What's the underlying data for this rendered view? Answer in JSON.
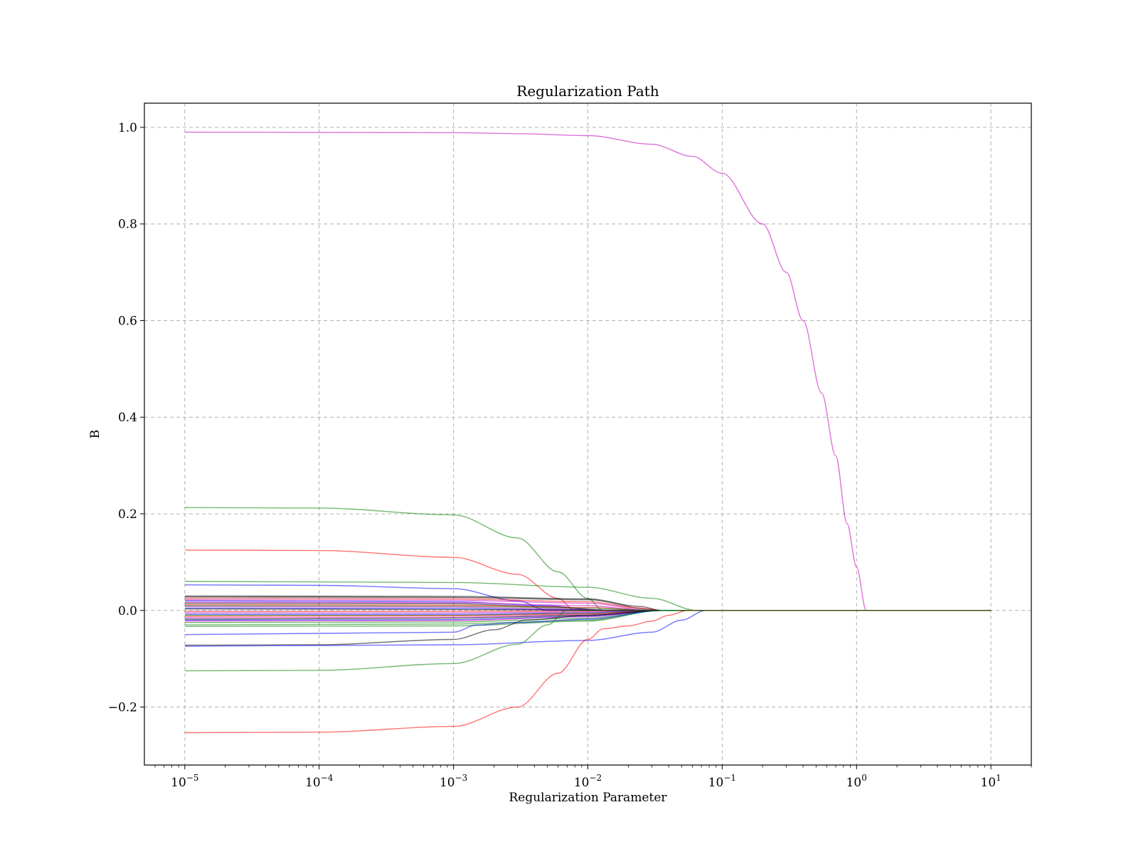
{
  "chart_data": {
    "type": "line",
    "title": "Regularization Path",
    "xlabel": "Regularization Parameter",
    "ylabel": "B",
    "xscale": "log",
    "xlim": [
      5e-06,
      20
    ],
    "ylim": [
      -0.32,
      1.05
    ],
    "grid": true,
    "legend": "none",
    "xticks": [
      {
        "value": 1e-05,
        "base": "10",
        "exp": "−5"
      },
      {
        "value": 0.0001,
        "base": "10",
        "exp": "−4"
      },
      {
        "value": 0.001,
        "base": "10",
        "exp": "−3"
      },
      {
        "value": 0.01,
        "base": "10",
        "exp": "−2"
      },
      {
        "value": 0.1,
        "base": "10",
        "exp": "−1"
      },
      {
        "value": 1,
        "base": "10",
        "exp": "0"
      },
      {
        "value": 10,
        "base": "10",
        "exp": "1"
      }
    ],
    "yticks": [
      {
        "value": -0.2,
        "label": "−0.2"
      },
      {
        "value": 0.0,
        "label": "0.0"
      },
      {
        "value": 0.2,
        "label": "0.2"
      },
      {
        "value": 0.4,
        "label": "0.4"
      },
      {
        "value": 0.6,
        "label": "0.6"
      },
      {
        "value": 0.8,
        "label": "0.8"
      },
      {
        "value": 1.0,
        "label": "1.0"
      }
    ],
    "series": [
      {
        "color": "#bf00bf",
        "points": [
          [
            1e-05,
            0.99
          ],
          [
            0.001,
            0.989
          ],
          [
            0.003,
            0.987
          ],
          [
            0.01,
            0.983
          ],
          [
            0.03,
            0.965
          ],
          [
            0.06,
            0.94
          ],
          [
            0.1,
            0.905
          ],
          [
            0.2,
            0.8
          ],
          [
            0.3,
            0.7
          ],
          [
            0.4,
            0.6
          ],
          [
            0.55,
            0.45
          ],
          [
            0.7,
            0.32
          ],
          [
            0.85,
            0.18
          ],
          [
            1.0,
            0.09
          ],
          [
            1.18,
            0.0
          ],
          [
            10,
            0.0
          ]
        ]
      },
      {
        "color": "#008000",
        "points": [
          [
            1e-05,
            0.213
          ],
          [
            0.0001,
            0.212
          ],
          [
            0.001,
            0.198
          ],
          [
            0.003,
            0.15
          ],
          [
            0.006,
            0.08
          ],
          [
            0.01,
            0.025
          ],
          [
            0.013,
            0.0
          ],
          [
            10,
            0.0
          ]
        ]
      },
      {
        "color": "#ff0000",
        "points": [
          [
            1e-05,
            0.125
          ],
          [
            0.0001,
            0.124
          ],
          [
            0.001,
            0.11
          ],
          [
            0.003,
            0.075
          ],
          [
            0.006,
            0.025
          ],
          [
            0.008,
            0.0
          ],
          [
            10,
            0.0
          ]
        ]
      },
      {
        "color": "#008000",
        "points": [
          [
            1e-05,
            0.06
          ],
          [
            0.001,
            0.058
          ],
          [
            0.01,
            0.048
          ],
          [
            0.03,
            0.025
          ],
          [
            0.065,
            0.0
          ],
          [
            10,
            0.0
          ]
        ]
      },
      {
        "color": "#0000ff",
        "points": [
          [
            1e-05,
            0.053
          ],
          [
            0.0001,
            0.052
          ],
          [
            0.001,
            0.045
          ],
          [
            0.003,
            0.02
          ],
          [
            0.005,
            0.0
          ],
          [
            10,
            0.0
          ]
        ]
      },
      {
        "color": "#000000",
        "points": [
          [
            1e-05,
            0.03
          ],
          [
            0.001,
            0.029
          ],
          [
            0.01,
            0.024
          ],
          [
            0.025,
            0.008
          ],
          [
            0.035,
            0.0
          ],
          [
            10,
            0.0
          ]
        ]
      },
      {
        "color": "#000000",
        "points": [
          [
            1e-05,
            0.028
          ],
          [
            0.001,
            0.027
          ],
          [
            0.01,
            0.022
          ],
          [
            0.03,
            0.002
          ],
          [
            0.035,
            0.0
          ],
          [
            10,
            0.0
          ]
        ]
      },
      {
        "color": "#ff0000",
        "points": [
          [
            1e-05,
            0.025
          ],
          [
            0.001,
            0.024
          ],
          [
            0.01,
            0.018
          ],
          [
            0.025,
            0.005
          ],
          [
            0.035,
            0.0
          ],
          [
            10,
            0.0
          ]
        ]
      },
      {
        "color": "#bf00bf",
        "points": [
          [
            1e-05,
            0.022
          ],
          [
            0.001,
            0.021
          ],
          [
            0.01,
            0.015
          ],
          [
            0.03,
            0.0
          ],
          [
            10,
            0.0
          ]
        ]
      },
      {
        "color": "#0000ff",
        "points": [
          [
            1e-05,
            0.02
          ],
          [
            0.001,
            0.018
          ],
          [
            0.005,
            0.01
          ],
          [
            0.012,
            0.0
          ],
          [
            10,
            0.0
          ]
        ]
      },
      {
        "color": "#bf00bf",
        "points": [
          [
            1e-05,
            0.017
          ],
          [
            0.001,
            0.016
          ],
          [
            0.01,
            0.01
          ],
          [
            0.028,
            0.0
          ],
          [
            10,
            0.0
          ]
        ]
      },
      {
        "color": "#000000",
        "points": [
          [
            1e-05,
            0.015
          ],
          [
            0.001,
            0.014
          ],
          [
            0.005,
            0.008
          ],
          [
            0.015,
            0.0
          ],
          [
            10,
            0.0
          ]
        ]
      },
      {
        "color": "#ff0000",
        "points": [
          [
            1e-05,
            0.012
          ],
          [
            0.001,
            0.011
          ],
          [
            0.01,
            0.006
          ],
          [
            0.03,
            0.0
          ],
          [
            10,
            0.0
          ]
        ]
      },
      {
        "color": "#008000",
        "points": [
          [
            1e-05,
            0.01
          ],
          [
            0.001,
            0.009
          ],
          [
            0.01,
            0.005
          ],
          [
            0.032,
            0.0
          ],
          [
            10,
            0.0
          ]
        ]
      },
      {
        "color": "#bf00bf",
        "points": [
          [
            1e-05,
            0.008
          ],
          [
            0.001,
            0.007
          ],
          [
            0.005,
            0.004
          ],
          [
            0.02,
            0.0
          ],
          [
            10,
            0.0
          ]
        ]
      },
      {
        "color": "#0000ff",
        "points": [
          [
            1e-05,
            0.005
          ],
          [
            0.001,
            0.004
          ],
          [
            0.005,
            0.002
          ],
          [
            0.015,
            0.0
          ],
          [
            10,
            0.0
          ]
        ]
      },
      {
        "color": "#000000",
        "points": [
          [
            1e-05,
            0.003
          ],
          [
            0.001,
            0.002
          ],
          [
            0.01,
            0.001
          ],
          [
            0.035,
            0.0
          ],
          [
            10,
            0.0
          ]
        ]
      },
      {
        "color": "#ff0000",
        "points": [
          [
            1e-05,
            -0.002
          ],
          [
            0.001,
            -0.002
          ],
          [
            0.01,
            -0.001
          ],
          [
            0.03,
            0.0
          ],
          [
            10,
            0.0
          ]
        ]
      },
      {
        "color": "#bf00bf",
        "points": [
          [
            1e-05,
            -0.005
          ],
          [
            0.001,
            -0.005
          ],
          [
            0.01,
            -0.003
          ],
          [
            0.032,
            0.0
          ],
          [
            10,
            0.0
          ]
        ]
      },
      {
        "color": "#0000ff",
        "points": [
          [
            1e-05,
            -0.008
          ],
          [
            0.001,
            -0.008
          ],
          [
            0.01,
            -0.005
          ],
          [
            0.03,
            0.0
          ],
          [
            10,
            0.0
          ]
        ]
      },
      {
        "color": "#008000",
        "points": [
          [
            1e-05,
            -0.01
          ],
          [
            0.001,
            -0.01
          ],
          [
            0.01,
            -0.006
          ],
          [
            0.035,
            0.0
          ],
          [
            10,
            0.0
          ]
        ]
      },
      {
        "color": "#ff0000",
        "points": [
          [
            1e-05,
            -0.012
          ],
          [
            0.001,
            -0.011
          ],
          [
            0.01,
            -0.007
          ],
          [
            0.035,
            0.0
          ],
          [
            10,
            0.0
          ]
        ]
      },
      {
        "color": "#bf00bf",
        "points": [
          [
            1e-05,
            -0.015
          ],
          [
            0.001,
            -0.014
          ],
          [
            0.01,
            -0.009
          ],
          [
            0.035,
            0.0
          ],
          [
            10,
            0.0
          ]
        ]
      },
      {
        "color": "#000000",
        "points": [
          [
            1e-05,
            -0.018
          ],
          [
            0.001,
            -0.016
          ],
          [
            0.01,
            -0.01
          ],
          [
            0.035,
            0.0
          ],
          [
            10,
            0.0
          ]
        ]
      },
      {
        "color": "#0000ff",
        "points": [
          [
            1e-05,
            -0.02
          ],
          [
            0.001,
            -0.019
          ],
          [
            0.01,
            -0.012
          ],
          [
            0.035,
            0.0
          ],
          [
            10,
            0.0
          ]
        ]
      },
      {
        "color": "#bf00bf",
        "points": [
          [
            1e-05,
            -0.022
          ],
          [
            0.001,
            -0.021
          ],
          [
            0.01,
            -0.013
          ],
          [
            0.035,
            0.0
          ],
          [
            10,
            0.0
          ]
        ]
      },
      {
        "color": "#008000",
        "points": [
          [
            1e-05,
            -0.025
          ],
          [
            0.001,
            -0.024
          ],
          [
            0.01,
            -0.016
          ],
          [
            0.035,
            0.0
          ],
          [
            10,
            0.0
          ]
        ]
      },
      {
        "color": "#008000",
        "points": [
          [
            1e-05,
            -0.03
          ],
          [
            0.001,
            -0.028
          ],
          [
            0.01,
            -0.02
          ],
          [
            0.035,
            0.0
          ],
          [
            10,
            0.0
          ]
        ]
      },
      {
        "color": "#008000",
        "points": [
          [
            1e-05,
            -0.033
          ],
          [
            0.001,
            -0.032
          ],
          [
            0.01,
            -0.022
          ],
          [
            0.035,
            0.0
          ],
          [
            10,
            0.0
          ]
        ]
      },
      {
        "color": "#0000ff",
        "points": [
          [
            1e-05,
            -0.05
          ],
          [
            0.001,
            -0.045
          ],
          [
            0.0015,
            -0.03
          ],
          [
            0.003,
            -0.025
          ],
          [
            0.01,
            -0.018
          ],
          [
            0.035,
            0.0
          ],
          [
            10,
            0.0
          ]
        ]
      },
      {
        "color": "#000000",
        "points": [
          [
            1e-05,
            -0.072
          ],
          [
            0.0001,
            -0.071
          ],
          [
            0.001,
            -0.06
          ],
          [
            0.002,
            -0.04
          ],
          [
            0.0035,
            -0.02
          ],
          [
            0.01,
            -0.01
          ],
          [
            0.035,
            0.0
          ],
          [
            10,
            0.0
          ]
        ]
      },
      {
        "color": "#0000ff",
        "points": [
          [
            1e-05,
            -0.074
          ],
          [
            0.001,
            -0.071
          ],
          [
            0.01,
            -0.062
          ],
          [
            0.03,
            -0.045
          ],
          [
            0.05,
            -0.02
          ],
          [
            0.075,
            0.0
          ],
          [
            10,
            0.0
          ]
        ]
      },
      {
        "color": "#008000",
        "points": [
          [
            1e-05,
            -0.125
          ],
          [
            0.0001,
            -0.124
          ],
          [
            0.001,
            -0.11
          ],
          [
            0.003,
            -0.07
          ],
          [
            0.005,
            -0.03
          ],
          [
            0.007,
            0.0
          ],
          [
            10,
            0.0
          ]
        ]
      },
      {
        "color": "#ff0000",
        "points": [
          [
            1e-05,
            -0.253
          ],
          [
            0.0001,
            -0.252
          ],
          [
            0.001,
            -0.24
          ],
          [
            0.003,
            -0.2
          ],
          [
            0.006,
            -0.13
          ],
          [
            0.01,
            -0.06
          ],
          [
            0.013,
            -0.038
          ],
          [
            0.02,
            -0.032
          ],
          [
            0.03,
            -0.022
          ],
          [
            0.04,
            -0.01
          ],
          [
            0.055,
            0.0
          ],
          [
            10,
            0.0
          ]
        ]
      },
      {
        "color": "#008000",
        "points": [
          [
            0.035,
            0.0
          ],
          [
            10,
            0.0
          ]
        ]
      }
    ]
  }
}
